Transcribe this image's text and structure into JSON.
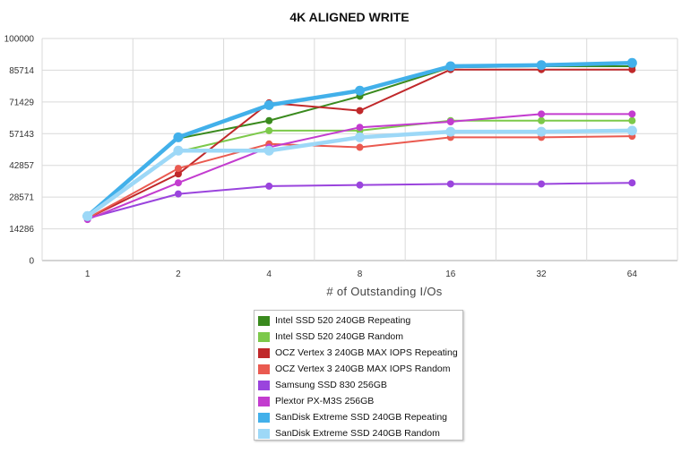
{
  "chart_data": {
    "type": "line",
    "title": "4K ALIGNED WRITE",
    "xlabel": "# of Outstanding I/Os",
    "ylabel": "",
    "categories": [
      "1",
      "2",
      "4",
      "8",
      "16",
      "32",
      "64"
    ],
    "yticks": [
      "0",
      "14286",
      "28571",
      "42857",
      "57143",
      "71429",
      "85714",
      "100000"
    ],
    "ylim": [
      0,
      100000
    ],
    "grid": true,
    "legend_position": "bottom",
    "series": [
      {
        "name": "Intel SSD 520 240GB Repeating",
        "color": "#3a8a1e",
        "values": [
          19500,
          55000,
          63000,
          74000,
          87000,
          87500,
          87500
        ]
      },
      {
        "name": "Intel SSD 520 240GB Random",
        "color": "#7cc94a",
        "values": [
          19500,
          49000,
          58500,
          58500,
          63000,
          63000,
          63000
        ]
      },
      {
        "name": "OCZ Vertex 3 240GB MAX IOPS Repeating",
        "color": "#c0282a",
        "values": [
          19000,
          39000,
          71000,
          67500,
          86000,
          86000,
          86000
        ]
      },
      {
        "name": "OCZ Vertex 3 240GB MAX IOPS Random",
        "color": "#ea5a50",
        "values": [
          19000,
          41500,
          52500,
          51000,
          55500,
          55500,
          56000
        ]
      },
      {
        "name": "Samsung SSD 830 256GB",
        "color": "#9a44dd",
        "values": [
          19000,
          30000,
          33500,
          34000,
          34500,
          34500,
          35000
        ]
      },
      {
        "name": "Plextor PX-M3S 256GB",
        "color": "#c33ccf",
        "values": [
          18500,
          35000,
          51000,
          60000,
          62500,
          66000,
          66000
        ]
      },
      {
        "name": "SanDisk Extreme SSD 240GB Repeating",
        "color": "#42b0ea",
        "values": [
          20000,
          55500,
          70000,
          76500,
          87500,
          88000,
          89000
        ]
      },
      {
        "name": "SanDisk Extreme SSD 240GB Random",
        "color": "#9dd8f7",
        "values": [
          20000,
          49500,
          49500,
          55500,
          58000,
          58000,
          58500
        ]
      }
    ]
  }
}
